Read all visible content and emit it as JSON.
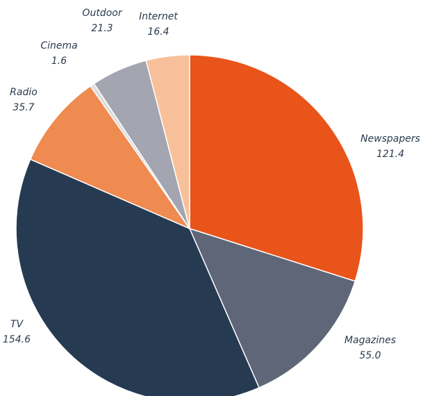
{
  "chart_data": {
    "type": "pie",
    "categories": [
      "Newspapers",
      "Magazines",
      "TV",
      "Radio",
      "Cinema",
      "Outdoor",
      "Internet"
    ],
    "values": [
      121.4,
      55.0,
      154.6,
      35.7,
      1.6,
      21.3,
      16.4
    ],
    "value_labels": [
      "121.4",
      "55.0",
      "154.6",
      "35.7",
      "1.6",
      "21.3",
      "16.4"
    ],
    "colors": [
      "#e8541a",
      "#5e6678",
      "#263b52",
      "#ef8a50",
      "#dcdcdc",
      "#a3a5b0",
      "#f8c09a"
    ]
  }
}
